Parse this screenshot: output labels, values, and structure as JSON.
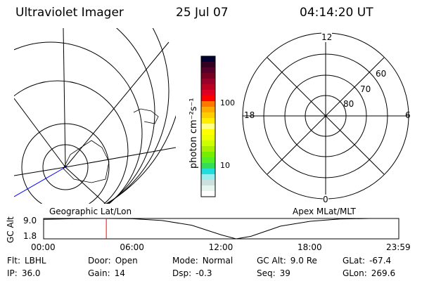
{
  "header": {
    "title": "Ultraviolet Imager",
    "date": "25 Jul 07",
    "time": "04:14:20 UT"
  },
  "colorbar": {
    "label": "photon cm⁻²s⁻¹",
    "ticks": [
      "100",
      "10"
    ],
    "colors": [
      "#000033",
      "#330022",
      "#55002a",
      "#770022",
      "#99002a",
      "#bb0022",
      "#dd0022",
      "#ff0000",
      "#ff7700",
      "#ffaa00",
      "#ffcc00",
      "#ffee00",
      "#ffff88",
      "#ffff00",
      "#eeff00",
      "#ccff00",
      "#aaee00",
      "#77ee00",
      "#55ee22",
      "#33dd55",
      "#22dddd",
      "#99eeee",
      "#cce0e0",
      "#e8f4ee",
      "#ffffff"
    ]
  },
  "polar": {
    "labels": {
      "top": "12",
      "bottom": "0",
      "left": "18",
      "right": "6"
    },
    "lat_labels": [
      "60",
      "70",
      "80"
    ]
  },
  "map": {
    "label": "Geographic Lat/Lon"
  },
  "apex_label": "Apex MLat/MLT",
  "chart_data": {
    "type": "line",
    "ylabel": "GC Alt",
    "yticks": [
      "9.0",
      "1.8"
    ],
    "ylim": [
      1.8,
      9.0
    ],
    "xticks": [
      "00:00",
      "06:00",
      "12:00",
      "18:00",
      "23:59"
    ],
    "x": [
      "00:00",
      "02:00",
      "04:00",
      "06:00",
      "08:00",
      "10:00",
      "12:00",
      "13:00",
      "14:00",
      "16:00",
      "18:00",
      "20:00",
      "22:00",
      "23:59"
    ],
    "values": [
      8.7,
      8.9,
      9.0,
      8.9,
      8.3,
      6.6,
      3.2,
      1.8,
      2.7,
      6.3,
      8.0,
      8.8,
      9.0,
      9.0
    ],
    "marker": "04:14",
    "marker_color": "#ff0000"
  },
  "status": [
    [
      {
        "k": "Flt:",
        "v": "LBHL"
      },
      {
        "k": "IP:",
        "v": "36.0"
      }
    ],
    [
      {
        "k": "Door:",
        "v": "Open"
      },
      {
        "k": "Gain:",
        "v": "14"
      }
    ],
    [
      {
        "k": "Mode:",
        "v": "Normal"
      },
      {
        "k": "Dsp:",
        "v": "-0.3"
      }
    ],
    [
      {
        "k": "GC Alt:",
        "v": "9.0 Re"
      },
      {
        "k": "Seq:",
        "v": "39"
      }
    ],
    [
      {
        "k": "GLat:",
        "v": "-67.4"
      },
      {
        "k": "GLon:",
        "v": "269.6"
      }
    ]
  ]
}
